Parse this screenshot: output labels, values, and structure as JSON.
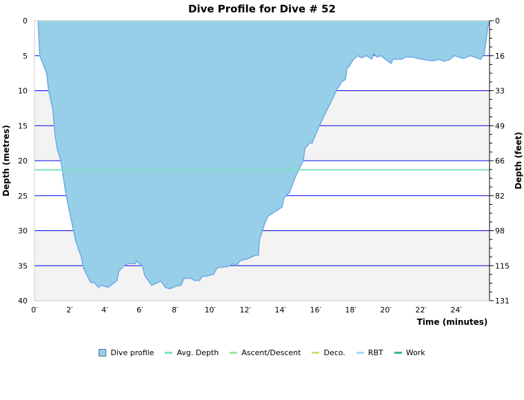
{
  "chart_data": {
    "type": "area",
    "title": "Dive Profile for Dive # 52",
    "xlabel": "Time (minutes)",
    "ylabel": "Depth (metres)",
    "ylabel_right": "Depth (feet)",
    "xlim": [
      0,
      25.9
    ],
    "ylim": [
      0,
      40
    ],
    "y_inverted": true,
    "x_ticks": [
      "0′",
      "2′",
      "4′",
      "6′",
      "8′",
      "10′",
      "12′",
      "14′",
      "16′",
      "18′",
      "20′",
      "22′",
      "24′"
    ],
    "y_ticks": [
      "0",
      "5",
      "10",
      "15",
      "20",
      "25",
      "30",
      "35",
      "40"
    ],
    "y_right_ticks": [
      "0",
      "16",
      "33",
      "49",
      "66",
      "82",
      "98",
      "115",
      "131"
    ],
    "grid": true,
    "legend_position": "bottom",
    "colors": {
      "profile_fill": "#97cfe8",
      "profile_line": "#6fa8e8",
      "avg": "#7ee0c0",
      "ascent": "#99e899",
      "deco": "#d8e070",
      "rbt": "#a0dcf4",
      "work": "#33b890",
      "grid": "#0000ee",
      "band": "#f3f3f3"
    },
    "legend": [
      "Dive profile",
      "Avg. Depth",
      "Ascent/Descent",
      "Deco.",
      "RBT",
      "Work"
    ],
    "avg_depth": 21.3,
    "series": [
      {
        "name": "Dive profile",
        "x": [
          0.2,
          0.3,
          0.7,
          0.8,
          1.05,
          1.17,
          1.3,
          1.5,
          1.76,
          1.96,
          2.35,
          2.67,
          2.8,
          3.2,
          3.4,
          3.65,
          3.8,
          4.2,
          4.7,
          4.8,
          5.1,
          5.35,
          5.75,
          5.8,
          6.15,
          6.27,
          6.67,
          7.2,
          7.45,
          7.7,
          8.1,
          8.35,
          8.5,
          8.9,
          9.1,
          9.4,
          9.55,
          9.8,
          10.2,
          10.4,
          11.05,
          11.3,
          11.5,
          11.7,
          12.15,
          12.6,
          12.75,
          12.8,
          13.1,
          13.3,
          13.8,
          14.1,
          14.2,
          14.5,
          14.9,
          15.3,
          15.4,
          15.7,
          15.8,
          16.2,
          16.6,
          16.9,
          17.2,
          17.5,
          17.7,
          17.8,
          17.9,
          18.1,
          18.4,
          18.6,
          18.9,
          19.2,
          19.3,
          19.5,
          19.7,
          20.3,
          20.4,
          20.9,
          21.1,
          21.5,
          21.8,
          22.5,
          22.8,
          23.0,
          23.3,
          23.6,
          23.9,
          24.4,
          24.8,
          25.4,
          25.6,
          25.7,
          25.8,
          25.9
        ],
        "y": [
          0,
          5,
          7.6,
          9.9,
          12.8,
          16.4,
          18.4,
          20,
          24.3,
          26.9,
          31.5,
          33.8,
          35.4,
          37.4,
          37.4,
          38.1,
          37.8,
          38.1,
          37.1,
          35.8,
          35,
          34.7,
          34.7,
          34.3,
          35.1,
          36.4,
          37.8,
          37.2,
          38.1,
          38.3,
          37.9,
          37.8,
          36.8,
          36.8,
          37.1,
          37.1,
          36.5,
          36.5,
          36.2,
          35.3,
          35.1,
          34.7,
          35,
          34.3,
          34,
          33.5,
          33.5,
          31.4,
          29,
          27.9,
          27.1,
          26.6,
          25.3,
          24.6,
          22,
          20,
          18.2,
          17.4,
          17.5,
          15.1,
          13,
          11.5,
          9.9,
          8.7,
          8.4,
          6.6,
          6.6,
          5.7,
          5.0,
          5.3,
          5.0,
          5.5,
          4.7,
          5.2,
          5.0,
          6.1,
          5.5,
          5.5,
          5.2,
          5.2,
          5.4,
          5.7,
          5.7,
          5.5,
          5.8,
          5.6,
          5.0,
          5.4,
          5.0,
          5.5,
          4.7,
          3,
          1,
          0
        ]
      }
    ]
  }
}
